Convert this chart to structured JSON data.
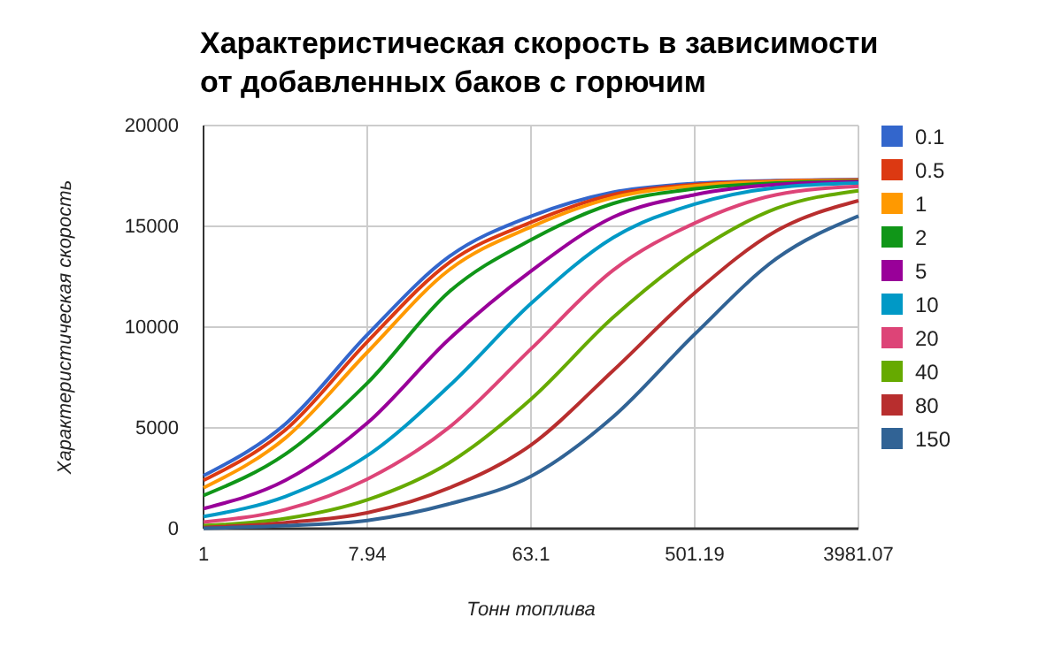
{
  "chart_data": {
    "type": "line",
    "title": "Характеристическая скорость в зависимости от добавленных баков с горючим",
    "xlabel": "Тонн топлива",
    "ylabel": "Характеристическая скорость",
    "log": "x",
    "grid": true,
    "legend": "right",
    "xlim": [
      1,
      3981.07
    ],
    "xticks": [
      1,
      7.94,
      63.1,
      501.19,
      3981.07
    ],
    "ylim": [
      0,
      20000
    ],
    "yticks": [
      0,
      5000,
      10000,
      15000,
      20000
    ],
    "x": [
      1,
      2.82,
      7.94,
      22.4,
      63.1,
      177.8,
      501.19,
      1412,
      3981.07
    ],
    "series": [
      {
        "name": "0.1",
        "color": "#3366cc",
        "values": [
          2630,
          5200,
          9620,
          13500,
          15500,
          16690,
          17130,
          17270,
          17330
        ]
      },
      {
        "name": "0.5",
        "color": "#dc3912",
        "values": [
          2400,
          4900,
          9270,
          13200,
          15200,
          16570,
          17070,
          17250,
          17300
        ]
      },
      {
        "name": "1",
        "color": "#ff9900",
        "values": [
          2030,
          4500,
          8750,
          12840,
          14970,
          16420,
          17010,
          17220,
          17270
        ]
      },
      {
        "name": "2",
        "color": "#109618",
        "values": [
          1650,
          3700,
          7220,
          11750,
          14330,
          16130,
          16860,
          17150,
          17240
        ]
      },
      {
        "name": "5",
        "color": "#990099",
        "values": [
          1000,
          2400,
          5240,
          9410,
          12780,
          15450,
          16570,
          17070,
          17210
        ]
      },
      {
        "name": "10",
        "color": "#0099c6",
        "values": [
          600,
          1600,
          3620,
          7080,
          11170,
          14430,
          16100,
          16920,
          17150
        ]
      },
      {
        "name": "20",
        "color": "#dd4477",
        "values": [
          330,
          950,
          2460,
          5030,
          8920,
          12810,
          15160,
          16570,
          16980
        ]
      },
      {
        "name": "40",
        "color": "#66aa00",
        "values": [
          150,
          500,
          1430,
          3270,
          6430,
          10470,
          13700,
          15890,
          16770
        ]
      },
      {
        "name": "80",
        "color": "#b82e2e",
        "values": [
          60,
          300,
          790,
          2020,
          4150,
          7830,
          11700,
          14780,
          16270
        ]
      },
      {
        "name": "150",
        "color": "#316395",
        "values": [
          20,
          150,
          410,
          1230,
          2600,
          5540,
          9650,
          13400,
          15510
        ]
      }
    ]
  }
}
